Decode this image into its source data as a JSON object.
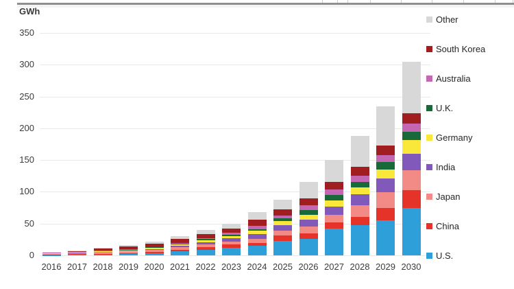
{
  "chart_data": {
    "type": "bar",
    "stacked": true,
    "title": "",
    "unit_label": "GWh",
    "xlabel": "",
    "ylabel": "GWh",
    "ylim": [
      0,
      350
    ],
    "y_ticks": [
      0,
      50,
      100,
      150,
      200,
      250,
      300,
      350
    ],
    "grid": true,
    "legend_position": "right",
    "legend_order_top_to_bottom": [
      "Other",
      "South Korea",
      "Australia",
      "U.K.",
      "Germany",
      "India",
      "Japan",
      "China",
      "U.S."
    ],
    "categories": [
      "2016",
      "2017",
      "2018",
      "2019",
      "2020",
      "2021",
      "2022",
      "2023",
      "2024",
      "2025",
      "2026",
      "2027",
      "2028",
      "2029",
      "2030"
    ],
    "series": [
      {
        "name": "U.S.",
        "color": "#2e9fd8",
        "values": [
          0.5,
          1.0,
          1.5,
          2.0,
          3.5,
          6.0,
          9.0,
          12.0,
          15.0,
          23.0,
          26.0,
          42.0,
          48.0,
          55.0,
          75.0
        ]
      },
      {
        "name": "China",
        "color": "#e63329",
        "values": [
          0.5,
          0.7,
          1.0,
          1.5,
          2.0,
          3.0,
          4.0,
          5.0,
          4.5,
          8.0,
          9.0,
          10.0,
          13.0,
          20.0,
          28.0
        ]
      },
      {
        "name": "Japan",
        "color": "#f28a85",
        "values": [
          1.5,
          2.0,
          2.5,
          2.5,
          3.0,
          3.5,
          4.5,
          5.0,
          6.5,
          8.0,
          10.0,
          12.0,
          18.0,
          24.0,
          31.0
        ]
      },
      {
        "name": "India",
        "color": "#8059ba",
        "values": [
          0.2,
          0.3,
          0.5,
          1.0,
          1.5,
          2.5,
          3.5,
          5.0,
          8.0,
          9.0,
          11.0,
          13.0,
          17.0,
          22.0,
          26.0
        ]
      },
      {
        "name": "Germany",
        "color": "#f9e839",
        "values": [
          0.8,
          1.0,
          1.0,
          1.0,
          1.5,
          2.0,
          2.5,
          3.0,
          4.5,
          6.0,
          8.0,
          10.0,
          11.0,
          14.0,
          21.0
        ]
      },
      {
        "name": "U.K.",
        "color": "#17693a",
        "values": [
          0.3,
          0.5,
          0.5,
          0.7,
          1.0,
          1.5,
          2.0,
          2.5,
          3.0,
          4.0,
          7.0,
          8.0,
          9.0,
          12.0,
          13.0
        ]
      },
      {
        "name": "Australia",
        "color": "#c466b2",
        "values": [
          0.3,
          0.5,
          0.5,
          0.8,
          1.0,
          1.5,
          2.0,
          3.0,
          4.5,
          5.0,
          8.0,
          9.0,
          9.0,
          11.0,
          14.0
        ]
      },
      {
        "name": "South Korea",
        "color": "#a01d20",
        "values": [
          0.4,
          1.0,
          3.5,
          4.5,
          5.0,
          5.5,
          6.0,
          7.0,
          10.0,
          9.0,
          11.0,
          12.0,
          14.0,
          15.0,
          16.0
        ]
      },
      {
        "name": "Other",
        "color": "#d8d8d8",
        "values": [
          0.5,
          1.0,
          1.0,
          2.0,
          3.5,
          4.5,
          6.5,
          7.5,
          12.0,
          16.0,
          26.0,
          34.0,
          49.0,
          62.0,
          81.0
        ]
      }
    ],
    "totals": [
      5,
      8,
      12,
      16,
      22,
      30,
      40,
      50,
      68,
      88,
      116,
      150,
      188,
      235,
      305
    ]
  }
}
